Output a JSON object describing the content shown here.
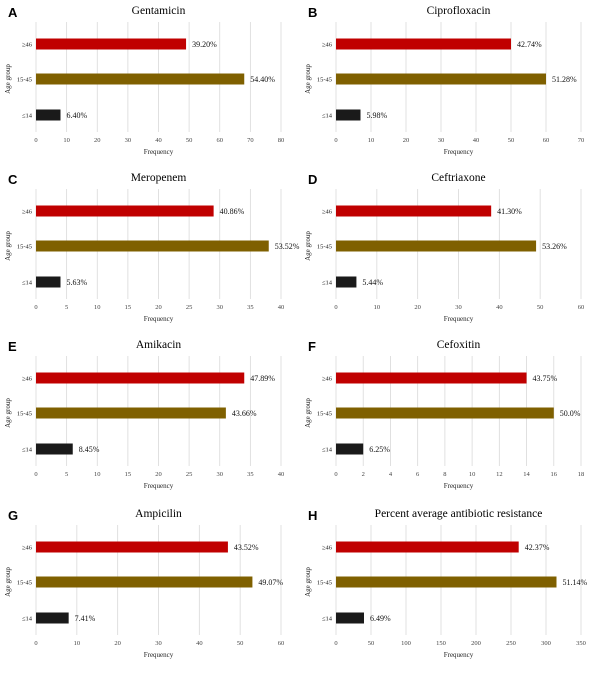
{
  "colors": {
    "age_46_plus": "#c00000",
    "age_15_45": "#7f6000",
    "age_14_minus": "#1a1a1a"
  },
  "chart_data": [
    {
      "panel": "A",
      "type": "bar",
      "orientation": "horizontal",
      "title": "Gentamicin",
      "xlabel": "Frequency",
      "ylabel": "Age group",
      "categories": [
        "≥46",
        "15-45",
        "≤14"
      ],
      "values": [
        49,
        68,
        8
      ],
      "labels": [
        "39.20%",
        "54.40%",
        "6.40%"
      ],
      "xlim": [
        0,
        80
      ],
      "xticks": [
        0,
        10,
        20,
        30,
        40,
        50,
        60,
        70,
        80
      ]
    },
    {
      "panel": "B",
      "type": "bar",
      "orientation": "horizontal",
      "title": "Ciprofloxacin",
      "xlabel": "Frequency",
      "ylabel": "Age group",
      "categories": [
        "≥46",
        "15-45",
        "≤14"
      ],
      "values": [
        50,
        60,
        7
      ],
      "labels": [
        "42.74%",
        "51.28%",
        "5.98%"
      ],
      "xlim": [
        0,
        70
      ],
      "xticks": [
        0,
        10,
        20,
        30,
        40,
        50,
        60,
        70
      ]
    },
    {
      "panel": "C",
      "type": "bar",
      "orientation": "horizontal",
      "title": "Meropenem",
      "xlabel": "Frequency",
      "ylabel": "Age group",
      "categories": [
        "≥46",
        "15-45",
        "≤14"
      ],
      "values": [
        29,
        38,
        4
      ],
      "labels": [
        "40.86%",
        "53.52%",
        "5.63%"
      ],
      "xlim": [
        0,
        40
      ],
      "xticks": [
        0,
        5,
        10,
        15,
        20,
        25,
        30,
        35,
        40
      ]
    },
    {
      "panel": "D",
      "type": "bar",
      "orientation": "horizontal",
      "title": "Ceftriaxone",
      "xlabel": "Frequency",
      "ylabel": "Age group",
      "categories": [
        "≥46",
        "15-45",
        "≤14"
      ],
      "values": [
        38,
        49,
        5
      ],
      "labels": [
        "41.30%",
        "53.26%",
        "5.44%"
      ],
      "xlim": [
        0,
        60
      ],
      "xticks": [
        0,
        10,
        20,
        30,
        40,
        50,
        60
      ]
    },
    {
      "panel": "E",
      "type": "bar",
      "orientation": "horizontal",
      "title": "Amikacin",
      "xlabel": "Frequency",
      "ylabel": "Age group",
      "categories": [
        "≥46",
        "15-45",
        "≤14"
      ],
      "values": [
        34,
        31,
        6
      ],
      "labels": [
        "47.89%",
        "43.66%",
        "8.45%"
      ],
      "xlim": [
        0,
        40
      ],
      "xticks": [
        0,
        5,
        10,
        15,
        20,
        25,
        30,
        35,
        40
      ]
    },
    {
      "panel": "F",
      "type": "bar",
      "orientation": "horizontal",
      "title": "Cefoxitin",
      "xlabel": "Frequency",
      "ylabel": "Age group",
      "categories": [
        "≥46",
        "15-45",
        "≤14"
      ],
      "values": [
        14,
        16,
        2
      ],
      "labels": [
        "43.75%",
        "50.0%",
        "6.25%"
      ],
      "xlim": [
        0,
        18
      ],
      "xticks": [
        0,
        2,
        4,
        6,
        8,
        10,
        12,
        14,
        16,
        18
      ]
    },
    {
      "panel": "G",
      "type": "bar",
      "orientation": "horizontal",
      "title": "Ampicilin",
      "xlabel": "Frequency",
      "ylabel": "Age group",
      "categories": [
        "≥46",
        "15-45",
        "≤14"
      ],
      "values": [
        47,
        53,
        8
      ],
      "labels": [
        "43.52%",
        "49.07%",
        "7.41%"
      ],
      "xlim": [
        0,
        60
      ],
      "xticks": [
        0,
        10,
        20,
        30,
        40,
        50,
        60
      ]
    },
    {
      "panel": "H",
      "type": "bar",
      "orientation": "horizontal",
      "title": "Percent average antibiotic resistance",
      "xlabel": "Frequency",
      "ylabel": "Age group",
      "categories": [
        "≥46",
        "15-45",
        "≤14"
      ],
      "values": [
        261,
        315,
        40
      ],
      "labels": [
        "42.37%",
        "51.14%",
        "6.49%"
      ],
      "xlim": [
        0,
        350
      ],
      "xticks": [
        0,
        50,
        100,
        150,
        200,
        250,
        300,
        350
      ]
    }
  ]
}
